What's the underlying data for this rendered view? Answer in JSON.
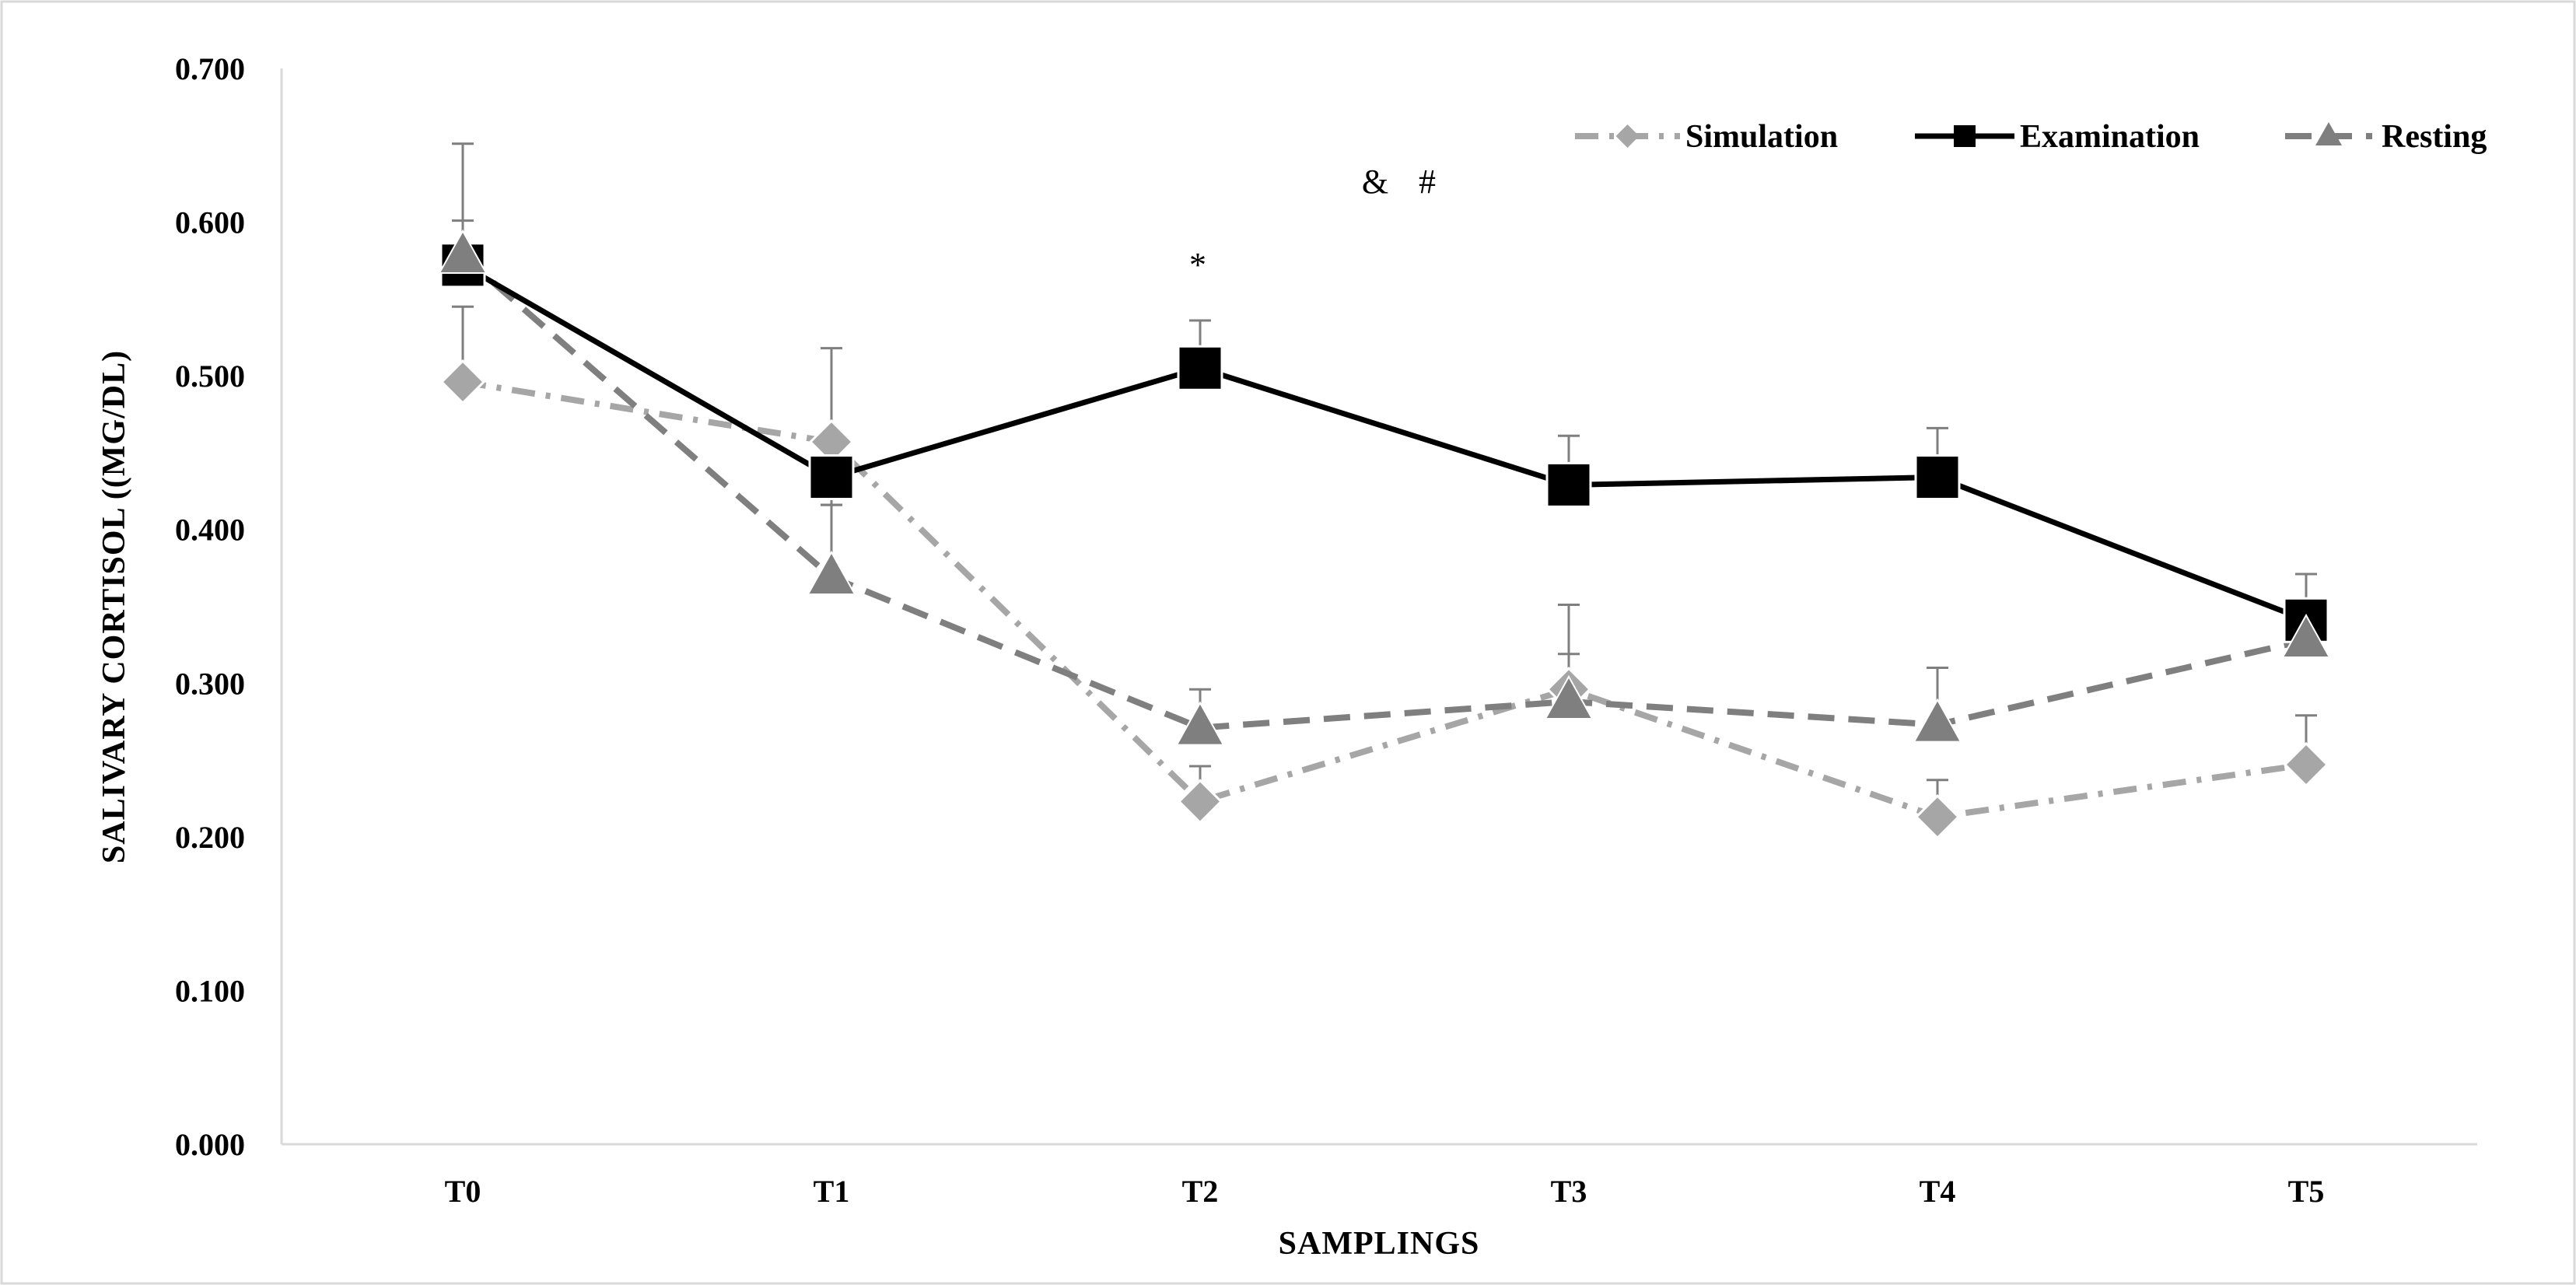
{
  "chart_data": {
    "type": "line",
    "title": "",
    "xlabel": "SAMPLINGS",
    "ylabel": "SALIVARY CORTISOL ((MG/DL)",
    "categories": [
      "T0",
      "T1",
      "T2",
      "T3",
      "T4",
      "T5"
    ],
    "ylim": [
      0,
      0.7
    ],
    "yticks": [
      0,
      0.1,
      0.2,
      0.3,
      0.4,
      0.5,
      0.6,
      0.7
    ],
    "ytick_labels": [
      "0.000",
      "0.100",
      "0.200",
      "0.300",
      "0.400",
      "0.500",
      "0.600",
      "0.700"
    ],
    "grid": false,
    "legend_position": "top-right",
    "series": [
      {
        "name": "Simulation",
        "values": [
          0.496,
          0.457,
          0.223,
          0.296,
          0.213,
          0.247
        ],
        "error_upper": [
          0.545,
          0.518,
          0.246,
          0.351,
          0.237,
          0.279
        ],
        "color": "#a6a6a6",
        "marker": "diamond",
        "line_style": "dash-dot"
      },
      {
        "name": "Examination",
        "values": [
          0.572,
          0.434,
          0.505,
          0.429,
          0.434,
          0.341
        ],
        "error_upper": [
          0.601,
          0.416,
          0.536,
          0.461,
          0.466,
          0.371
        ],
        "color": "#000000",
        "marker": "square",
        "line_style": "solid"
      },
      {
        "name": "Resting",
        "values": [
          0.578,
          0.369,
          0.271,
          0.288,
          0.273,
          0.328
        ],
        "error_upper": [
          0.651,
          0.416,
          0.296,
          0.319,
          0.31,
          0.34
        ],
        "color": "#7f7f7f",
        "marker": "triangle",
        "line_style": "dashed"
      }
    ],
    "annotations": [
      {
        "text": "&",
        "x": "T2.5",
        "y": 0.62
      },
      {
        "text": "#",
        "x": "T2.6",
        "y": 0.62
      },
      {
        "text": "*",
        "x": "T2",
        "y": 0.575
      }
    ]
  }
}
